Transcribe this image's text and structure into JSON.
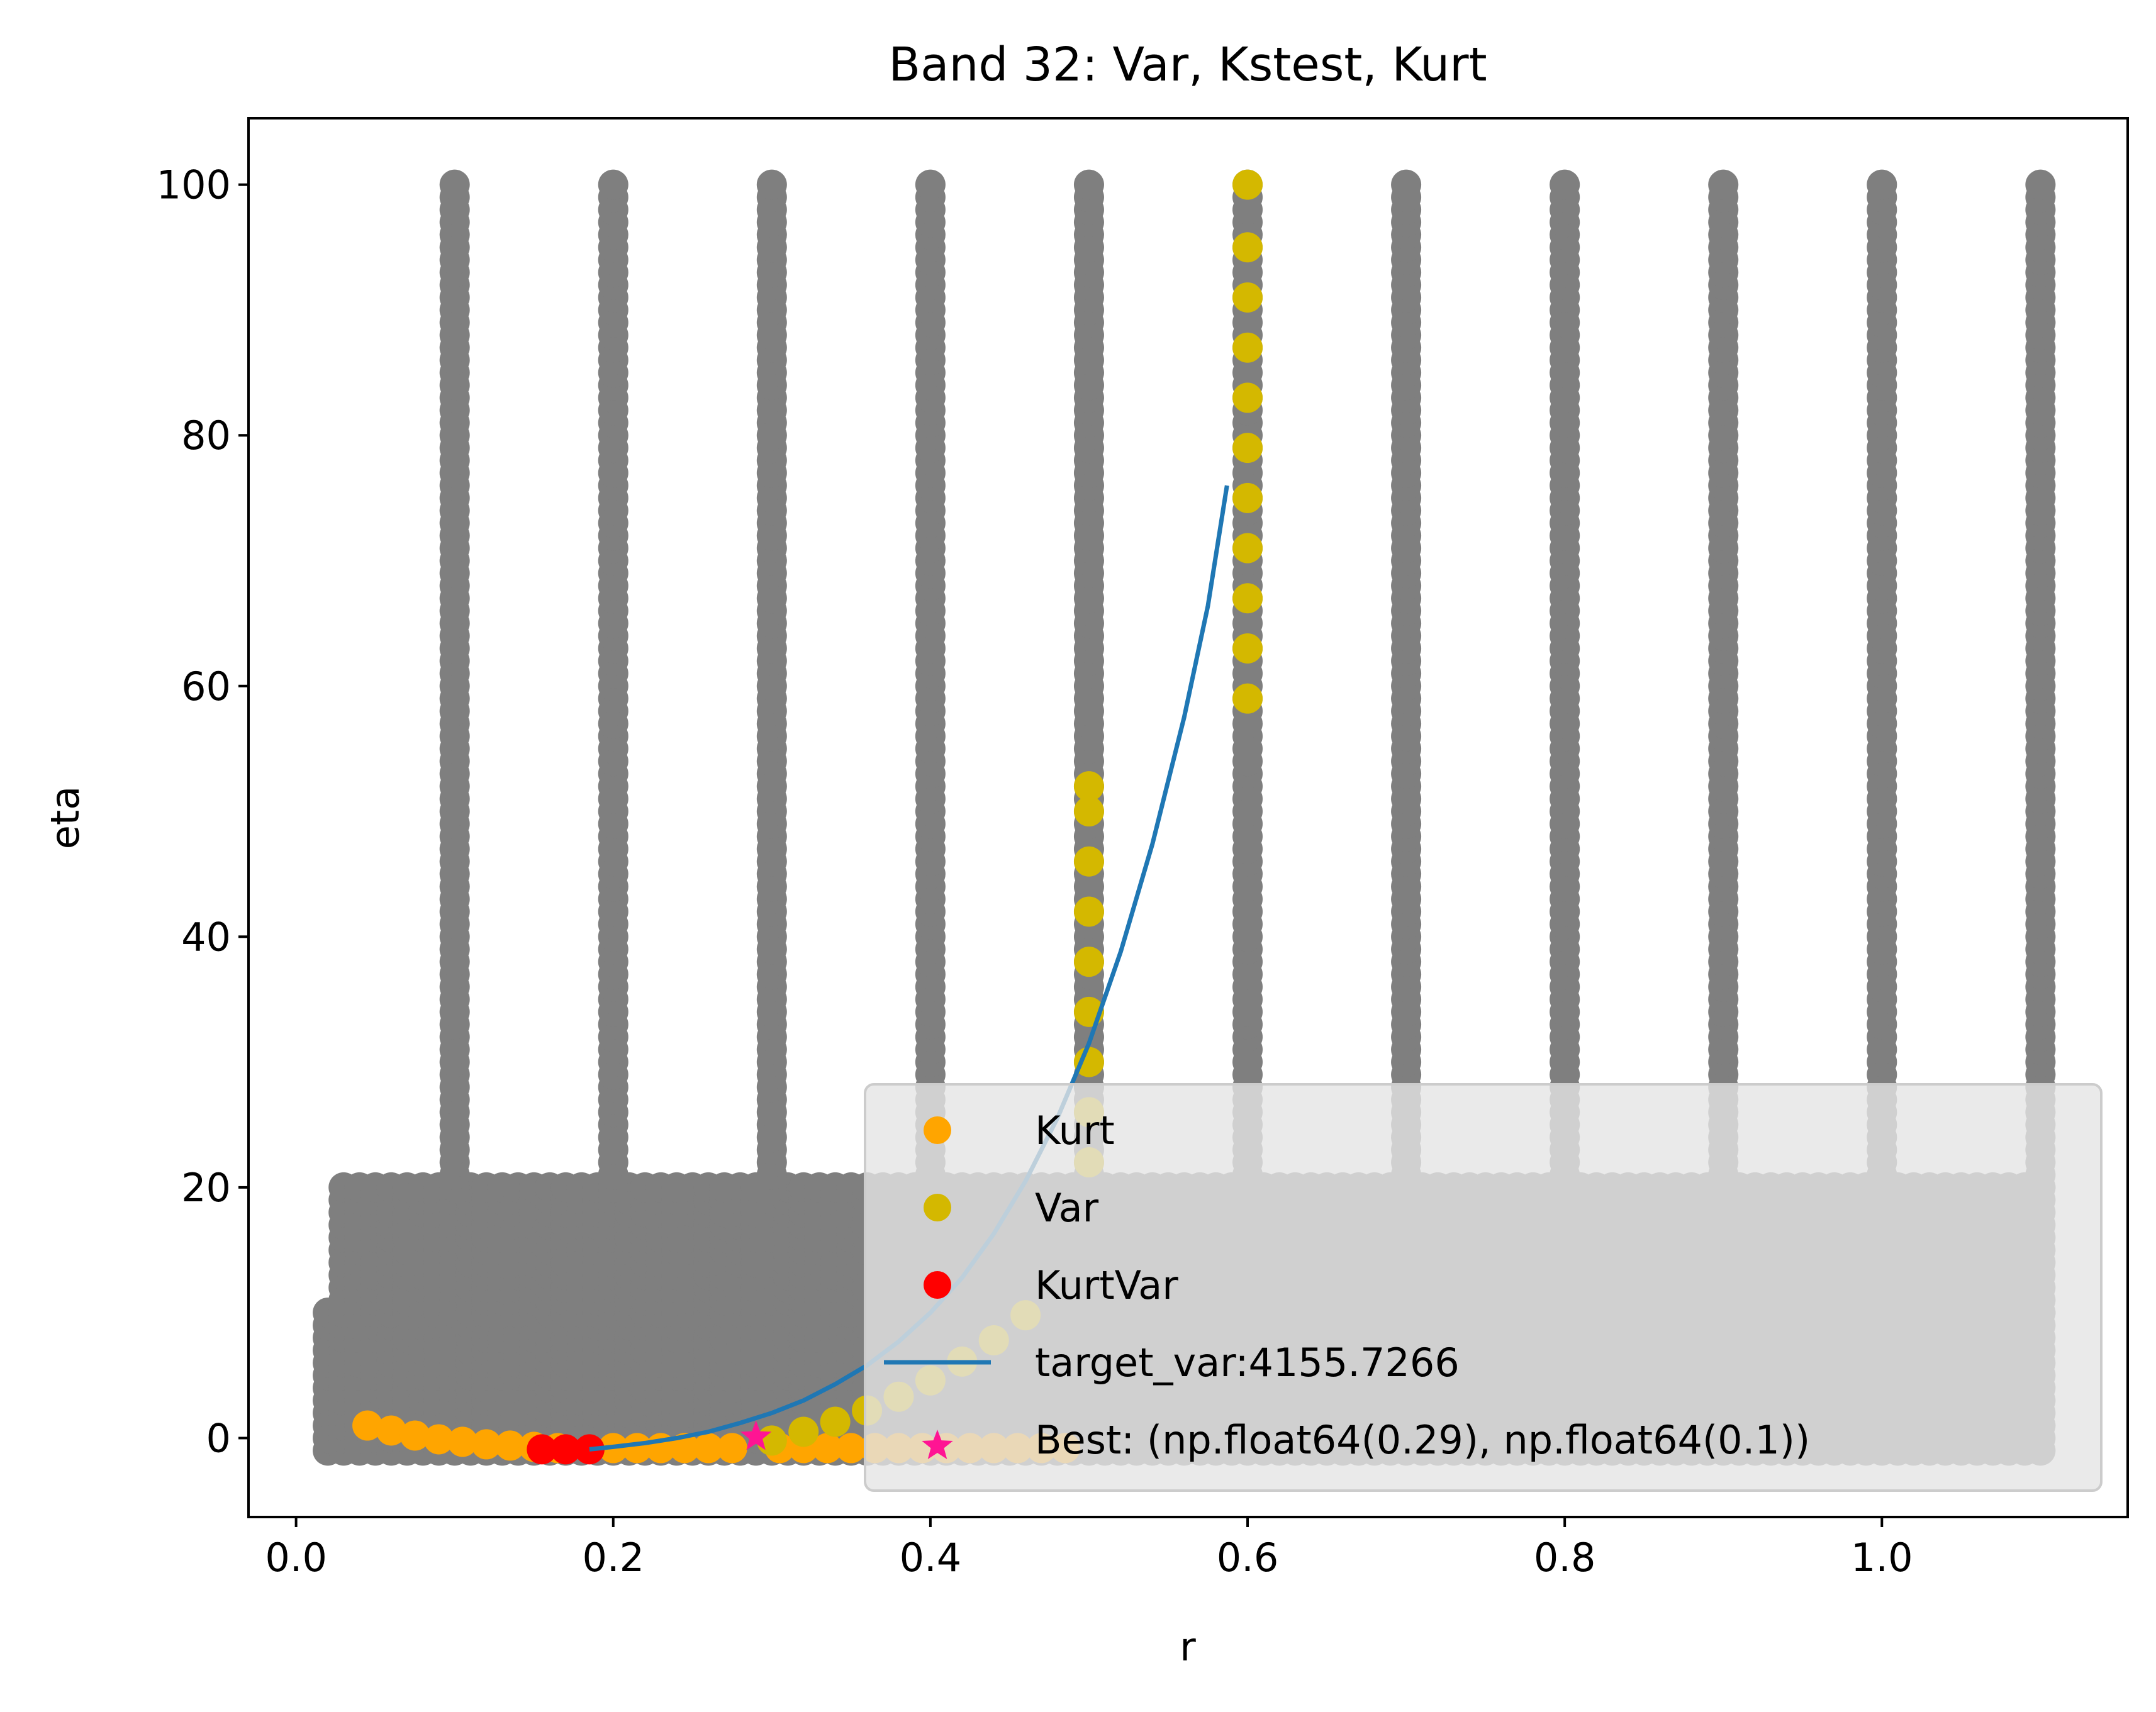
{
  "chart_data": {
    "type": "scatter",
    "title": "Band 32: Var, Kstest, Kurt",
    "xlabel": "r",
    "ylabel": "eta",
    "xlim": [
      -0.03,
      1.155
    ],
    "ylim": [
      -6.3,
      105.3
    ],
    "x_ticks": [
      0.0,
      0.2,
      0.4,
      0.6,
      0.8,
      1.0
    ],
    "x_tick_labels": [
      "0.0",
      "0.2",
      "0.4",
      "0.6",
      "0.8",
      "1.0"
    ],
    "y_ticks": [
      0,
      20,
      40,
      60,
      80,
      100
    ],
    "y_tick_labels": [
      "0",
      "20",
      "40",
      "60",
      "80",
      "100"
    ],
    "grid": false,
    "legend_position": "lower-right",
    "colors": {
      "grid_points": "#7f7f7f",
      "Kurt": "#ffa500",
      "Var": "#d4b800",
      "KurtVar": "#ff0000",
      "target_var": "#1f77b4",
      "Best": "#ff1493"
    },
    "background_points": {
      "color": "#7f7f7f",
      "low_block": {
        "r_range": [
          0.02,
          1.1
        ],
        "eta_range": [
          -1,
          10
        ]
      },
      "mid_block": {
        "r_range": [
          0.03,
          1.1
        ],
        "eta_range": [
          10,
          20
        ]
      },
      "columns": {
        "r": [
          0.1,
          0.2,
          0.3,
          0.4,
          0.5,
          0.6,
          0.7,
          0.8,
          0.9,
          1.0,
          1.1
        ],
        "eta_range": [
          20,
          100
        ]
      }
    },
    "series": [
      {
        "name": "Kurt",
        "marker": "circle",
        "color": "#ffa500",
        "points": [
          [
            0.045,
            1.0
          ],
          [
            0.06,
            0.6
          ],
          [
            0.075,
            0.2
          ],
          [
            0.09,
            -0.1
          ],
          [
            0.105,
            -0.3
          ],
          [
            0.12,
            -0.5
          ],
          [
            0.135,
            -0.6
          ],
          [
            0.15,
            -0.7
          ],
          [
            0.165,
            -0.8
          ],
          [
            0.2,
            -0.8
          ],
          [
            0.215,
            -0.8
          ],
          [
            0.23,
            -0.8
          ],
          [
            0.245,
            -0.8
          ],
          [
            0.26,
            -0.8
          ],
          [
            0.275,
            -0.8
          ],
          [
            0.305,
            -0.8
          ],
          [
            0.32,
            -0.8
          ],
          [
            0.335,
            -0.8
          ],
          [
            0.35,
            -0.8
          ],
          [
            0.365,
            -0.8
          ],
          [
            0.38,
            -0.8
          ],
          [
            0.395,
            -0.8
          ],
          [
            0.41,
            -0.8
          ],
          [
            0.425,
            -0.8
          ],
          [
            0.44,
            -0.8
          ],
          [
            0.455,
            -0.8
          ],
          [
            0.47,
            -0.8
          ],
          [
            0.485,
            -0.8
          ]
        ]
      },
      {
        "name": "Var",
        "marker": "circle",
        "color": "#d4b800",
        "points": [
          [
            0.5,
            22
          ],
          [
            0.5,
            26
          ],
          [
            0.5,
            30
          ],
          [
            0.5,
            34
          ],
          [
            0.5,
            38
          ],
          [
            0.5,
            42
          ],
          [
            0.5,
            46
          ],
          [
            0.5,
            50
          ],
          [
            0.5,
            52
          ],
          [
            0.6,
            59
          ],
          [
            0.6,
            63
          ],
          [
            0.6,
            67
          ],
          [
            0.6,
            71
          ],
          [
            0.6,
            75
          ],
          [
            0.6,
            79
          ],
          [
            0.6,
            83
          ],
          [
            0.6,
            87
          ],
          [
            0.6,
            91
          ],
          [
            0.6,
            95
          ],
          [
            0.6,
            100
          ],
          [
            0.3,
            -0.2
          ],
          [
            0.32,
            0.5
          ],
          [
            0.34,
            1.3
          ],
          [
            0.36,
            2.2
          ],
          [
            0.38,
            3.3
          ],
          [
            0.4,
            4.6
          ],
          [
            0.42,
            6.1
          ],
          [
            0.44,
            7.8
          ],
          [
            0.46,
            9.8
          ]
        ]
      },
      {
        "name": "KurtVar",
        "marker": "circle",
        "color": "#ff0000",
        "points": [
          [
            0.155,
            -0.9
          ],
          [
            0.17,
            -0.9
          ],
          [
            0.185,
            -0.9
          ]
        ]
      },
      {
        "name": "target_var:4155.7266",
        "marker": "line",
        "color": "#1f77b4",
        "points": [
          [
            0.185,
            -0.9
          ],
          [
            0.2,
            -0.7
          ],
          [
            0.22,
            -0.4
          ],
          [
            0.24,
            0.0
          ],
          [
            0.26,
            0.5
          ],
          [
            0.28,
            1.2
          ],
          [
            0.3,
            2.0
          ],
          [
            0.32,
            3.0
          ],
          [
            0.34,
            4.3
          ],
          [
            0.36,
            5.8
          ],
          [
            0.38,
            7.7
          ],
          [
            0.4,
            10.0
          ],
          [
            0.42,
            12.8
          ],
          [
            0.44,
            16.3
          ],
          [
            0.46,
            20.5
          ],
          [
            0.48,
            25.5
          ],
          [
            0.5,
            31.5
          ],
          [
            0.52,
            38.8
          ],
          [
            0.54,
            47.4
          ],
          [
            0.56,
            57.5
          ],
          [
            0.575,
            66.4
          ],
          [
            0.587,
            76.0
          ]
        ]
      },
      {
        "name": "Best: (np.float64(0.29), np.float64(0.1))",
        "marker": "star",
        "color": "#ff1493",
        "points": [
          [
            0.29,
            0.1
          ]
        ]
      }
    ]
  }
}
